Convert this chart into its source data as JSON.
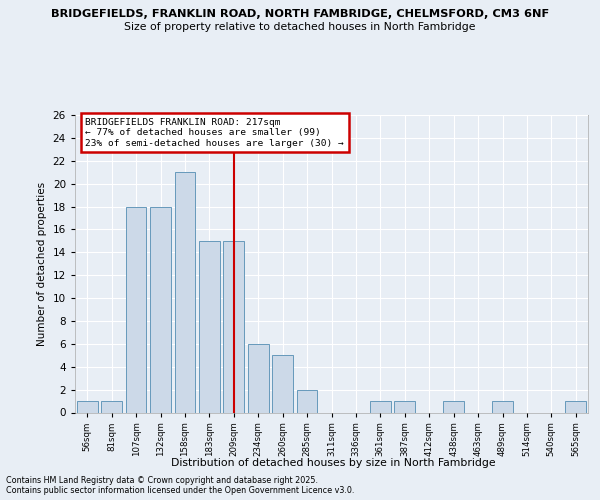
{
  "title1": "BRIDGEFIELDS, FRANKLIN ROAD, NORTH FAMBRIDGE, CHELMSFORD, CM3 6NF",
  "title2": "Size of property relative to detached houses in North Fambridge",
  "xlabel": "Distribution of detached houses by size in North Fambridge",
  "ylabel": "Number of detached properties",
  "categories": [
    "56sqm",
    "81sqm",
    "107sqm",
    "132sqm",
    "158sqm",
    "183sqm",
    "209sqm",
    "234sqm",
    "260sqm",
    "285sqm",
    "311sqm",
    "336sqm",
    "361sqm",
    "387sqm",
    "412sqm",
    "438sqm",
    "463sqm",
    "489sqm",
    "514sqm",
    "540sqm",
    "565sqm"
  ],
  "values": [
    1,
    1,
    18,
    18,
    21,
    15,
    15,
    6,
    5,
    2,
    0,
    0,
    1,
    1,
    0,
    1,
    0,
    1,
    0,
    0,
    1
  ],
  "bar_color": "#ccd9e8",
  "bar_edge_color": "#6699bb",
  "vline_x": 6,
  "annotation_text": "BRIDGEFIELDS FRANKLIN ROAD: 217sqm\n← 77% of detached houses are smaller (99)\n23% of semi-detached houses are larger (30) →",
  "annotation_box_color": "#ffffff",
  "annotation_box_edge_color": "#cc0000",
  "vline_color": "#cc0000",
  "ylim": [
    0,
    26
  ],
  "yticks": [
    0,
    2,
    4,
    6,
    8,
    10,
    12,
    14,
    16,
    18,
    20,
    22,
    24,
    26
  ],
  "footer": "Contains HM Land Registry data © Crown copyright and database right 2025.\nContains public sector information licensed under the Open Government Licence v3.0.",
  "bg_color": "#e8eef5",
  "plot_bg_color": "#e8eef5",
  "grid_color": "#ffffff"
}
